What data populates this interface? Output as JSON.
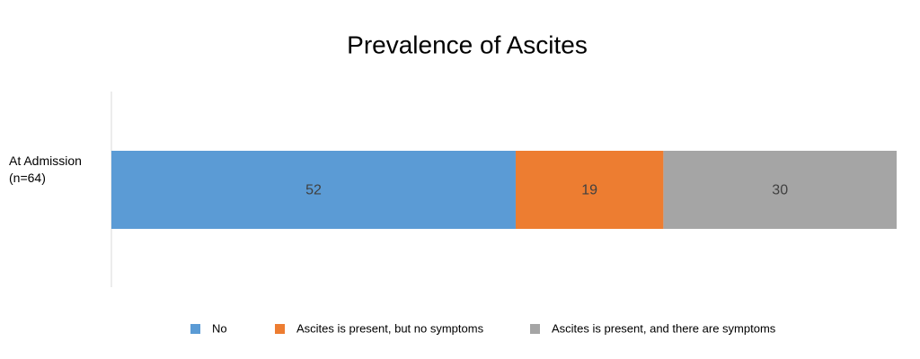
{
  "chart_data": {
    "type": "stacked-bar-horizontal",
    "title": "Prevalence of Ascites",
    "categories": [
      "At Admission (n=64)"
    ],
    "series": [
      {
        "name": "No",
        "color": "#5b9bd5",
        "values": [
          52
        ]
      },
      {
        "name": "Ascites is present, but no symptoms",
        "color": "#ed7d31",
        "values": [
          19
        ]
      },
      {
        "name": "Ascites is present, and there are symptoms",
        "color": "#a5a5a5",
        "values": [
          30
        ]
      }
    ],
    "legend": "bottom"
  }
}
